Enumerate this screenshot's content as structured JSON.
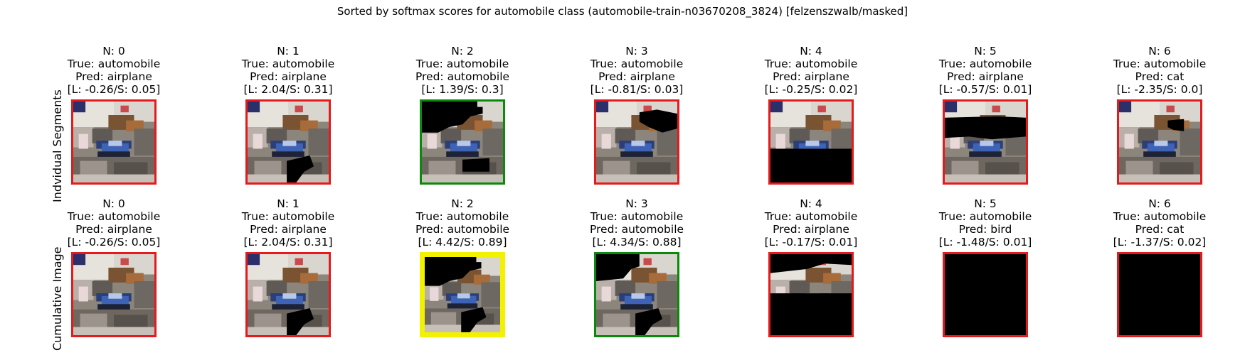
{
  "title": "Sorted by softmax scores for automobile class (automobile-train-n03670208_3824) [felzenszwalb/masked]",
  "row_labels": [
    "Indvidual Segments",
    "Cumulative Image"
  ],
  "colors": {
    "red": "#e41a1c",
    "green": "#0a8a0a",
    "yellow": "#f2f200"
  },
  "chart_data": {
    "type": "image-grid",
    "rows": [
      {
        "name": "Indvidual Segments",
        "panels": [
          {
            "n": "N: 0",
            "true": "True: automobile",
            "pred": "Pred: airplane",
            "score": "[L: -0.26/S: 0.05]",
            "frame": "red",
            "mask": "none"
          },
          {
            "n": "N: 1",
            "true": "True: automobile",
            "pred": "Pred: airplane",
            "score": "[L: 2.04/S: 0.31]",
            "frame": "red",
            "mask": "bottom-blob"
          },
          {
            "n": "N: 2",
            "true": "True: automobile",
            "pred": "Pred: automobile",
            "score": "[L: 1.39/S: 0.3]",
            "frame": "green",
            "mask": "top-black"
          },
          {
            "n": "N: 3",
            "true": "True: automobile",
            "pred": "Pred: airplane",
            "score": "[L: -0.81/S: 0.03]",
            "frame": "red",
            "mask": "right-patch"
          },
          {
            "n": "N: 4",
            "true": "True: automobile",
            "pred": "Pred: airplane",
            "score": "[L: -0.25/S: 0.02]",
            "frame": "red",
            "mask": "bottom-black"
          },
          {
            "n": "N: 5",
            "true": "True: automobile",
            "pred": "Pred: airplane",
            "score": "[L: -0.57/S: 0.01]",
            "frame": "red",
            "mask": "middle-band"
          },
          {
            "n": "N: 6",
            "true": "True: automobile",
            "pred": "Pred: cat",
            "score": "[L: -2.35/S: 0.0]",
            "frame": "red",
            "mask": "small-patch"
          }
        ]
      },
      {
        "name": "Cumulative Image",
        "panels": [
          {
            "n": "N: 0",
            "true": "True: automobile",
            "pred": "Pred: airplane",
            "score": "[L: -0.26/S: 0.05]",
            "frame": "red",
            "mask": "none"
          },
          {
            "n": "N: 1",
            "true": "True: automobile",
            "pred": "Pred: airplane",
            "score": "[L: 2.04/S: 0.31]",
            "frame": "red",
            "mask": "bottom-blob"
          },
          {
            "n": "N: 2",
            "true": "True: automobile",
            "pred": "Pred: automobile",
            "score": "[L: 4.42/S: 0.89]",
            "frame": "yellow",
            "mask": "cum-2"
          },
          {
            "n": "N: 3",
            "true": "True: automobile",
            "pred": "Pred: automobile",
            "score": "[L: 4.34/S: 0.88]",
            "frame": "green",
            "mask": "cum-3"
          },
          {
            "n": "N: 4",
            "true": "True: automobile",
            "pred": "Pred: airplane",
            "score": "[L: -0.17/S: 0.01]",
            "frame": "red",
            "mask": "cum-4"
          },
          {
            "n": "N: 5",
            "true": "True: automobile",
            "pred": "Pred: bird",
            "score": "[L: -1.48/S: 0.01]",
            "frame": "red",
            "mask": "cum-5"
          },
          {
            "n": "N: 6",
            "true": "True: automobile",
            "pred": "Pred: cat",
            "score": "[L: -1.37/S: 0.02]",
            "frame": "red",
            "mask": "all-black"
          }
        ]
      }
    ]
  }
}
